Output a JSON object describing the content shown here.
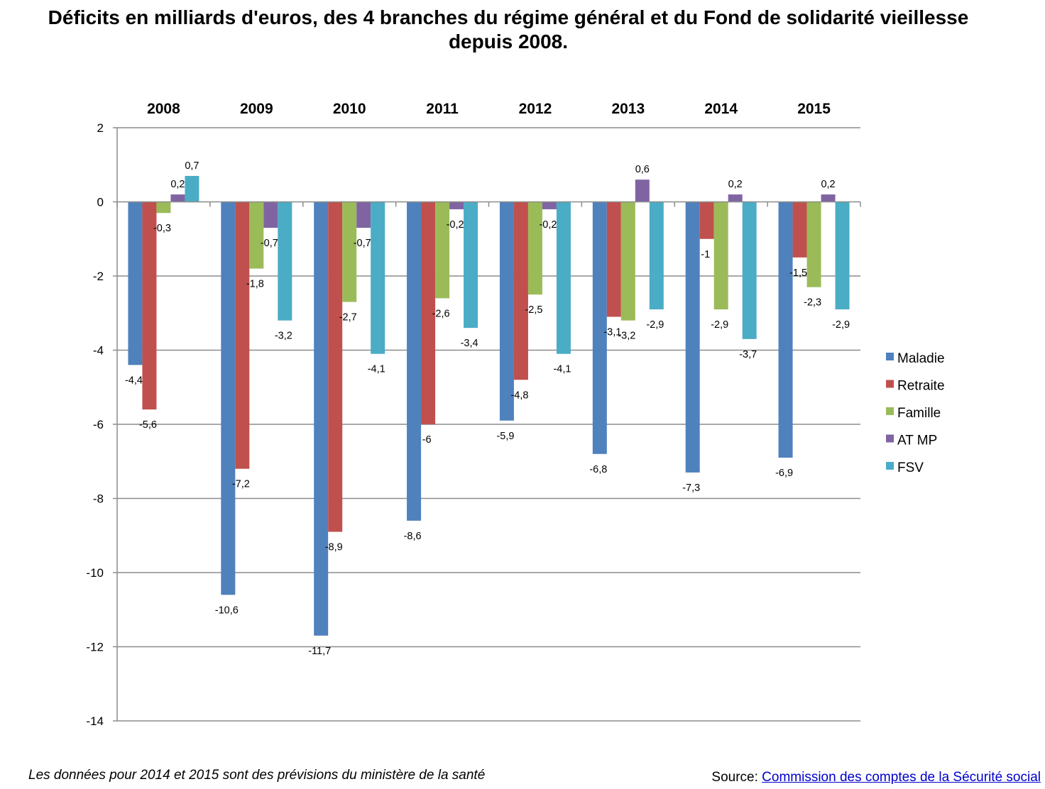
{
  "chart_data": {
    "type": "bar",
    "title_line1": "Déficits en milliards d'euros, des 4 branches du régime général et du Fond de solidarité vieillesse",
    "title_line2": "depuis 2008.",
    "xlabel": "",
    "ylabel": "",
    "ylim": [
      -14,
      2
    ],
    "yticks": [
      2,
      0,
      -2,
      -4,
      -6,
      -8,
      -10,
      -12,
      -14
    ],
    "grid": true,
    "legend_position": "right",
    "category_axis_position": "top",
    "categories": [
      "2008",
      "2009",
      "2010",
      "2011",
      "2012",
      "2013",
      "2014",
      "2015"
    ],
    "series": [
      {
        "name": "Maladie",
        "color": "#4f81bd",
        "values": [
          -4.4,
          -10.6,
          -11.7,
          -8.6,
          -5.9,
          -6.8,
          -7.3,
          -6.9
        ],
        "labels": [
          "-4,4",
          "-10,6",
          "-11,7",
          "-8,6",
          "-5,9",
          "-6,8",
          "-7,3",
          "-6,9"
        ]
      },
      {
        "name": "Retraite",
        "color": "#c0504d",
        "values": [
          -5.6,
          -7.2,
          -8.9,
          -6,
          -4.8,
          -3.1,
          -1,
          -1.5
        ],
        "labels": [
          "-5,6",
          "-7,2",
          "-8,9",
          "-6",
          "-4,8",
          "-3,1",
          "-1",
          "-1,5"
        ]
      },
      {
        "name": "Famille",
        "color": "#9bbb59",
        "values": [
          -0.3,
          -1.8,
          -2.7,
          -2.6,
          -2.5,
          -3.2,
          -2.9,
          -2.3
        ],
        "labels": [
          "-0,3",
          "-1,8",
          "-2,7",
          "-2,6",
          "-2,5",
          "-3,2",
          "-2,9",
          "-2,3"
        ]
      },
      {
        "name": "AT MP",
        "color": "#8064a2",
        "values": [
          0.2,
          -0.7,
          -0.7,
          -0.2,
          -0.2,
          0.6,
          0.2,
          0.2
        ],
        "labels": [
          "0,2",
          "-0,7",
          "-0,7",
          "-0,2",
          "-0,2",
          "0,6",
          "0,2",
          "0,2"
        ]
      },
      {
        "name": "FSV",
        "color": "#4bacc6",
        "values": [
          0.7,
          -3.2,
          -4.1,
          -3.4,
          -4.1,
          -2.9,
          -3.7,
          -2.9
        ],
        "labels": [
          "0,7",
          "-3,2",
          "-4,1",
          "-3,4",
          "-4,1",
          "-2,9",
          "-3,7",
          "-2,9"
        ]
      }
    ]
  },
  "footnote": "Les données pour 2014 et 2015 sont des prévisions du ministère de la santé",
  "source": {
    "prefix": "Source: ",
    "link_text": "Commission des comptes de la Sécurité social"
  }
}
